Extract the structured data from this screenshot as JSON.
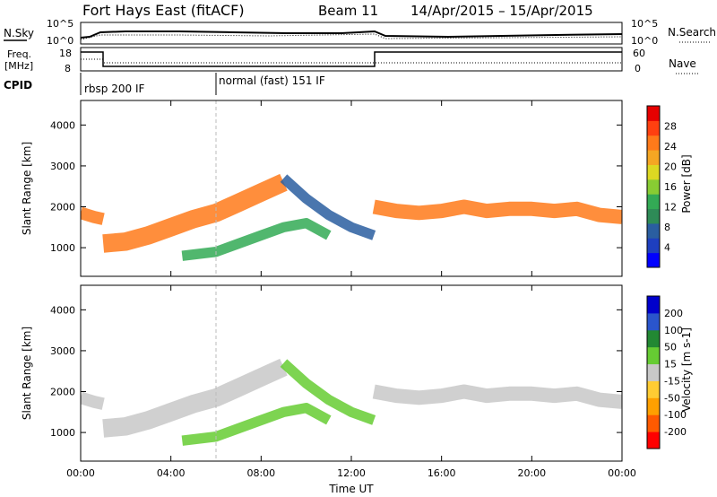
{
  "header": {
    "title": "Fort Hays East (fitACF)",
    "beam": "Beam 11",
    "dates": "14/Apr/2015 – 15/Apr/2015"
  },
  "panels": {
    "noise": {
      "left_label": "N.Sky",
      "right_label": "N.Search",
      "left_ticks": [
        "10^5",
        "10^0"
      ],
      "right_ticks": [
        "10^5",
        "10^0"
      ]
    },
    "freq": {
      "left_label_line1": "Freq.",
      "left_label_line2": "[MHz]",
      "right_label": "Nave",
      "left_ticks": [
        "18",
        "8"
      ],
      "right_ticks": [
        "60",
        "0"
      ]
    },
    "cpid": {
      "label": "CPID",
      "segments": [
        {
          "start": 0,
          "end": 6,
          "text": "rbsp 200 IF"
        },
        {
          "start": 6,
          "end": 24,
          "text": "normal (fast) 151 IF"
        }
      ]
    }
  },
  "colorbars": {
    "power": {
      "label": "Power [dB]",
      "ticks": [
        "4",
        "8",
        "12",
        "16",
        "20",
        "24",
        "28"
      ],
      "colors": [
        "#0000ff",
        "#1e3fbf",
        "#2a5ea0",
        "#2e8b57",
        "#33aa55",
        "#88cc33",
        "#ddd822",
        "#f5a623",
        "#ff7a1a",
        "#ff4010",
        "#e60000"
      ]
    },
    "velocity": {
      "label": "Velocity [m s-1]",
      "ticks": [
        "-200",
        "-100",
        "-50",
        "-15",
        "15",
        "50",
        "100",
        "200"
      ],
      "colors": [
        "#ff0000",
        "#ff5a00",
        "#ffa000",
        "#ffcc33",
        "#c8c8c8",
        "#66cc33",
        "#228833",
        "#2a55cc",
        "#0000cc"
      ]
    }
  },
  "chart_data": [
    {
      "type": "heatmap",
      "name": "Power",
      "xlabel": "",
      "ylabel": "Slant Range [km]",
      "xlim": [
        0,
        24
      ],
      "ylim": [
        300,
        4600
      ],
      "y_ticks": [
        1000,
        2000,
        3000,
        4000
      ],
      "x_ticks": [
        0,
        4,
        8,
        12,
        16,
        20,
        24
      ],
      "legend": "right colorbar",
      "bands": [
        {
          "from": 0,
          "to": 1,
          "points": [
            [
              0.0,
              1850
            ],
            [
              0.6,
              1750
            ],
            [
              1.0,
              1700
            ]
          ],
          "width": 300,
          "color": "#ff7a1a"
        },
        {
          "from": 1,
          "to": 9,
          "points": [
            [
              1.0,
              1100
            ],
            [
              2,
              1150
            ],
            [
              3,
              1300
            ],
            [
              4,
              1500
            ],
            [
              5,
              1700
            ],
            [
              6,
              1850
            ],
            [
              7,
              2100
            ],
            [
              8,
              2350
            ],
            [
              9,
              2600
            ]
          ],
          "width": 450,
          "color": "#ff7a1a"
        },
        {
          "from": 4.5,
          "to": 11,
          "points": [
            [
              4.5,
              800
            ],
            [
              6,
              900
            ],
            [
              7,
              1100
            ],
            [
              8,
              1300
            ],
            [
              9,
              1500
            ],
            [
              10,
              1600
            ],
            [
              11,
              1300
            ]
          ],
          "width": 250,
          "color": "#33aa55"
        },
        {
          "from": 9,
          "to": 13,
          "points": [
            [
              9,
              2700
            ],
            [
              10,
              2200
            ],
            [
              11,
              1800
            ],
            [
              12,
              1500
            ],
            [
              13,
              1300
            ]
          ],
          "width": 250,
          "color": "#2a5ea0"
        },
        {
          "from": 13,
          "to": 24,
          "points": [
            [
              13,
              2000
            ],
            [
              14,
              1900
            ],
            [
              15,
              1850
            ],
            [
              16,
              1900
            ],
            [
              17,
              2000
            ],
            [
              18,
              1900
            ],
            [
              19,
              1950
            ],
            [
              20,
              1950
            ],
            [
              21,
              1900
            ],
            [
              22,
              1950
            ],
            [
              23,
              1800
            ],
            [
              24,
              1750
            ]
          ],
          "width": 350,
          "color": "#ff7a1a"
        }
      ]
    },
    {
      "type": "heatmap",
      "name": "Velocity",
      "xlabel": "Time UT",
      "ylabel": "Slant Range [km]",
      "xlim": [
        0,
        24
      ],
      "ylim": [
        300,
        4600
      ],
      "y_ticks": [
        1000,
        2000,
        3000,
        4000
      ],
      "x_ticks": [
        0,
        4,
        8,
        12,
        16,
        20,
        24
      ],
      "x_tick_labels": [
        "00:00",
        "04:00",
        "08:00",
        "12:00",
        "16:00",
        "20:00",
        "00:00"
      ],
      "legend": "right colorbar",
      "bands": [
        {
          "from": 0,
          "to": 1,
          "points": [
            [
              0.0,
              1850
            ],
            [
              0.6,
              1750
            ],
            [
              1.0,
              1700
            ]
          ],
          "width": 300,
          "color": "#c8c8c8"
        },
        {
          "from": 1,
          "to": 9,
          "points": [
            [
              1.0,
              1100
            ],
            [
              2,
              1150
            ],
            [
              3,
              1300
            ],
            [
              4,
              1500
            ],
            [
              5,
              1700
            ],
            [
              6,
              1850
            ],
            [
              7,
              2100
            ],
            [
              8,
              2350
            ],
            [
              9,
              2600
            ]
          ],
          "width": 450,
          "color": "#c8c8c8"
        },
        {
          "from": 4.5,
          "to": 11,
          "points": [
            [
              4.5,
              800
            ],
            [
              6,
              900
            ],
            [
              7,
              1100
            ],
            [
              8,
              1300
            ],
            [
              9,
              1500
            ],
            [
              10,
              1600
            ],
            [
              11,
              1300
            ]
          ],
          "width": 250,
          "color": "#66cc33"
        },
        {
          "from": 9,
          "to": 13,
          "points": [
            [
              9,
              2700
            ],
            [
              10,
              2200
            ],
            [
              11,
              1800
            ],
            [
              12,
              1500
            ],
            [
              13,
              1300
            ]
          ],
          "width": 250,
          "color": "#66cc33"
        },
        {
          "from": 13,
          "to": 24,
          "points": [
            [
              13,
              2000
            ],
            [
              14,
              1900
            ],
            [
              15,
              1850
            ],
            [
              16,
              1900
            ],
            [
              17,
              2000
            ],
            [
              18,
              1900
            ],
            [
              19,
              1950
            ],
            [
              20,
              1950
            ],
            [
              21,
              1900
            ],
            [
              22,
              1950
            ],
            [
              23,
              1800
            ],
            [
              24,
              1750
            ]
          ],
          "width": 350,
          "color": "#c8c8c8"
        }
      ]
    }
  ]
}
